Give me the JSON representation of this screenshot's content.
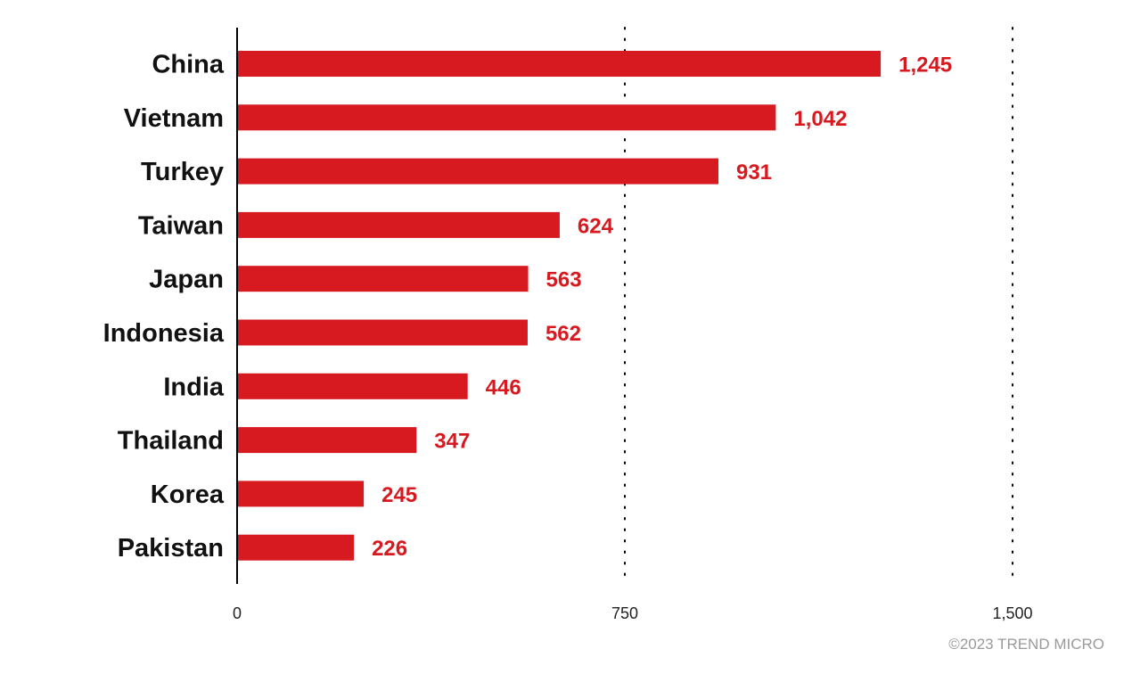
{
  "colors": {
    "bar": "#d71920",
    "value_label": "#d71920",
    "axis": "#000000",
    "grid": "#000000"
  },
  "chart_data": {
    "type": "bar",
    "orientation": "horizontal",
    "categories": [
      "China",
      "Vietnam",
      "Turkey",
      "Taiwan",
      "Japan",
      "Indonesia",
      "India",
      "Thailand",
      "Korea",
      "Pakistan"
    ],
    "values": [
      1245,
      1042,
      931,
      624,
      563,
      562,
      446,
      347,
      245,
      226
    ],
    "value_labels": [
      "1,245",
      "1,042",
      "931",
      "624",
      "563",
      "562",
      "446",
      "347",
      "245",
      "226"
    ],
    "xlim": [
      0,
      1500
    ],
    "ticks": [
      0,
      750,
      1500
    ],
    "tick_labels": [
      "0",
      "750",
      "1,500"
    ],
    "grid": "dotted vertical",
    "legend": "none",
    "title": "",
    "xlabel": "",
    "ylabel": ""
  },
  "footer": {
    "copyright": "©2023 TREND MICRO"
  }
}
